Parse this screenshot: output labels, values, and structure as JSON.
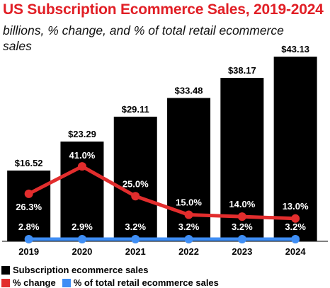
{
  "title": "US Subscription Ecommerce Sales, 2019-2024",
  "subtitle": "billions, % change, and % of total retail ecommerce sales",
  "colors": {
    "title": "#e11f26",
    "bar": "#000000",
    "change_line": "#e22d2d",
    "share_line": "#3f8ef5"
  },
  "legend": {
    "sales": "Subscription ecommerce sales",
    "change": "% change",
    "share": "% of total retail ecommerce sales"
  },
  "chart_data": {
    "type": "bar",
    "categories": [
      "2019",
      "2020",
      "2021",
      "2022",
      "2023",
      "2024"
    ],
    "series": [
      {
        "name": "Subscription ecommerce sales",
        "type": "bar",
        "values": [
          16.52,
          23.29,
          29.11,
          33.48,
          38.17,
          43.13
        ],
        "labels": [
          "$16.52",
          "$23.29",
          "$29.11",
          "$33.48",
          "$38.17",
          "$43.13"
        ]
      },
      {
        "name": "% change",
        "type": "line",
        "values": [
          26.3,
          41.0,
          25.0,
          15.0,
          14.0,
          13.0
        ],
        "labels": [
          "26.3%",
          "41.0%",
          "25.0%",
          "15.0%",
          "14.0%",
          "13.0%"
        ]
      },
      {
        "name": "% of total retail ecommerce sales",
        "type": "line",
        "values": [
          2.8,
          2.9,
          3.2,
          3.2,
          3.2,
          3.2
        ],
        "labels": [
          "2.8%",
          "2.9%",
          "3.2%",
          "3.2%",
          "3.2%",
          "3.2%"
        ]
      }
    ],
    "grid": false,
    "legend_position": "bottom-left"
  }
}
